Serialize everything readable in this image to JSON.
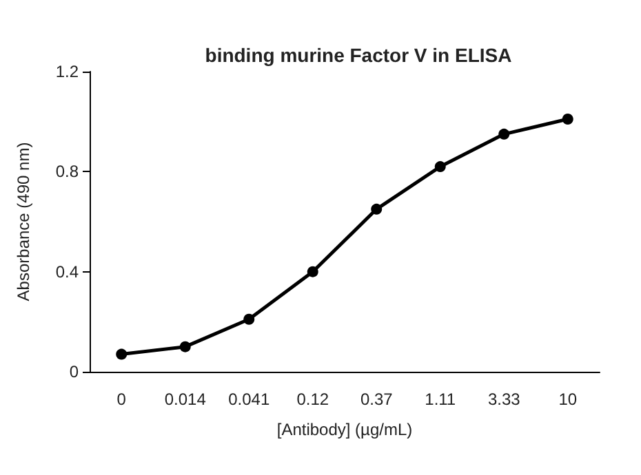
{
  "chart_data": {
    "type": "line",
    "title": "binding murine Factor V in ELISA",
    "xlabel": "[Antibody] (µg/mL)",
    "ylabel": "Absorbance (490 nm)",
    "categories": [
      "0",
      "0.014",
      "0.041",
      "0.12",
      "0.37",
      "1.11",
      "3.33",
      "10"
    ],
    "series": [
      {
        "color": "#000000",
        "values": [
          0.07,
          0.1,
          0.21,
          0.4,
          0.65,
          0.82,
          0.95,
          1.01
        ]
      }
    ],
    "ylim": [
      0,
      1.2
    ],
    "yticks": [
      0,
      0.4,
      0.8,
      1.2
    ],
    "marker": "circle",
    "line_style": "solid"
  }
}
